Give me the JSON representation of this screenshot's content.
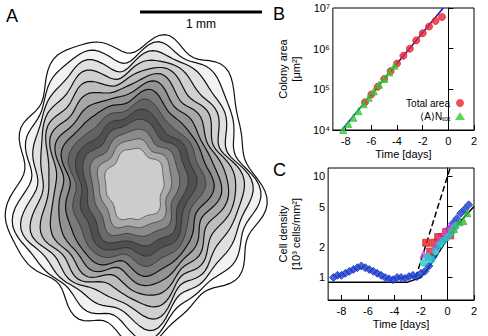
{
  "image_panel": {
    "label": "A",
    "scale_bar": "1 mm"
  },
  "chart_data": [
    {
      "type": "scatter",
      "title": "B",
      "xlabel": "Time [days]",
      "ylabel": "Colony area\n[μm²]",
      "log": "y",
      "legend": "lower right",
      "xlim": [
        -9,
        2
      ],
      "xticks": [
        -8,
        -6,
        -4,
        -2,
        0,
        2
      ],
      "ylim": [
        10000,
        10000000
      ],
      "yticks": [
        {
          "value": 10000,
          "label": "10⁴"
        },
        {
          "value": 100000,
          "label": "10⁵"
        },
        {
          "value": 1000000,
          "label": "10⁶"
        },
        {
          "value": 10000000,
          "label": "10⁷"
        }
      ],
      "series": [
        {
          "name": "Total area",
          "color": "#e8262a",
          "marker": "circle",
          "x": [
            -6.5,
            -6.0,
            -5.5,
            -5.0,
            -4.5,
            -4.0,
            -3.5,
            -3.0,
            -2.5,
            -2.0,
            -1.5,
            -1.0,
            -0.5
          ],
          "values": [
            48000,
            75000,
            116000,
            180000,
            280000,
            430000,
            670000,
            1000000,
            1600000,
            2400000,
            3500000,
            4800000,
            6000000
          ]
        },
        {
          "name": "⟨A⟩Nₜₒₜ",
          "color": "#33cc33",
          "marker": "triangle",
          "x": [
            -8.2,
            -7.8,
            -7.4,
            -7.0,
            -6.6,
            -6.2,
            -5.8,
            -5.4,
            -5.0,
            -4.6,
            -4.2
          ],
          "values": [
            10000,
            14000,
            20000,
            29000,
            43000,
            62000,
            90000,
            130000,
            180000,
            260000,
            380000
          ]
        },
        {
          "type": "line",
          "color": "#1010c0",
          "line_style": "solid",
          "x": [
            -8.3,
            -0.4
          ],
          "values": [
            10000,
            10000000
          ]
        }
      ]
    },
    {
      "type": "scatter",
      "title": "C",
      "xlabel": "Time [days]",
      "ylabel": "Cell density\n[10³ cells/mm²]",
      "log": "y",
      "xlim": [
        -9,
        2
      ],
      "xticks": [
        -8,
        -6,
        -4,
        -2,
        0,
        2
      ],
      "ylim": [
        0.6,
        12
      ],
      "yticks": [
        1,
        2,
        5,
        10
      ],
      "series": [
        {
          "type": "line",
          "color": "#000000",
          "line_style": "solid",
          "x": [
            -9,
            -3,
            -2,
            -1,
            0,
            1,
            2
          ],
          "values": [
            0.9,
            0.9,
            1.0,
            1.5,
            2.4,
            3.6,
            5.0
          ]
        },
        {
          "type": "line",
          "color": "#000000",
          "line_style": "dashed",
          "x": [
            -2.4,
            0.2
          ],
          "values": [
            1.0,
            12
          ]
        },
        {
          "color": "#1a3ccc",
          "marker": "diamond",
          "x": [
            -8.6,
            -8.3,
            -8.0,
            -7.7,
            -7.4,
            -7.1,
            -6.8,
            -6.5,
            -6.2,
            -5.9,
            -5.6,
            -5.3,
            -5.0,
            -4.7,
            -4.4,
            -4.1,
            -3.8,
            -3.5,
            -3.2,
            -2.9,
            -2.6,
            -2.3,
            -2.0,
            -1.7,
            -1.4,
            -1.1,
            -0.8,
            -0.5,
            -0.2,
            0.1,
            0.4,
            0.7,
            1.0,
            1.3,
            1.6
          ],
          "values": [
            1.0,
            1.05,
            1.05,
            1.1,
            1.15,
            1.2,
            1.25,
            1.3,
            1.25,
            1.2,
            1.15,
            1.1,
            1.05,
            1.0,
            0.97,
            0.95,
            1.0,
            1.0,
            0.98,
            1.02,
            1.05,
            1.02,
            1.1,
            1.15,
            1.3,
            1.6,
            2.0,
            2.3,
            2.6,
            3.0,
            3.4,
            3.8,
            4.3,
            4.7,
            5.2
          ]
        },
        {
          "color": "#e02020",
          "marker": "square",
          "x": [
            -1.6,
            -1.3,
            -1.0,
            -0.7,
            -0.4,
            -0.1,
            0.2
          ],
          "values": [
            2.2,
            1.8,
            2.2,
            2.5,
            2.5,
            2.8,
            2.6
          ]
        },
        {
          "color": "#e040e0",
          "marker": "triangle",
          "x": [
            -1.8,
            -1.4,
            -1.0,
            -0.6,
            -0.2,
            0.2,
            0.6
          ],
          "values": [
            1.7,
            1.6,
            2.0,
            2.4,
            2.8,
            3.2,
            3.3
          ]
        },
        {
          "color": "#22cccc",
          "marker": "circle",
          "x": [
            -1.8,
            -1.5,
            -1.2,
            -0.9,
            -0.6,
            -0.3,
            0.0,
            0.3,
            0.6
          ],
          "values": [
            1.4,
            1.6,
            1.5,
            1.8,
            2.1,
            2.3,
            2.5,
            2.8,
            3.2
          ]
        },
        {
          "color": "#33bb33",
          "marker": "triangle",
          "x": [
            0.5,
            0.9,
            1.2,
            1.5
          ],
          "values": [
            3.0,
            3.5,
            3.6,
            4.3
          ]
        }
      ]
    }
  ]
}
